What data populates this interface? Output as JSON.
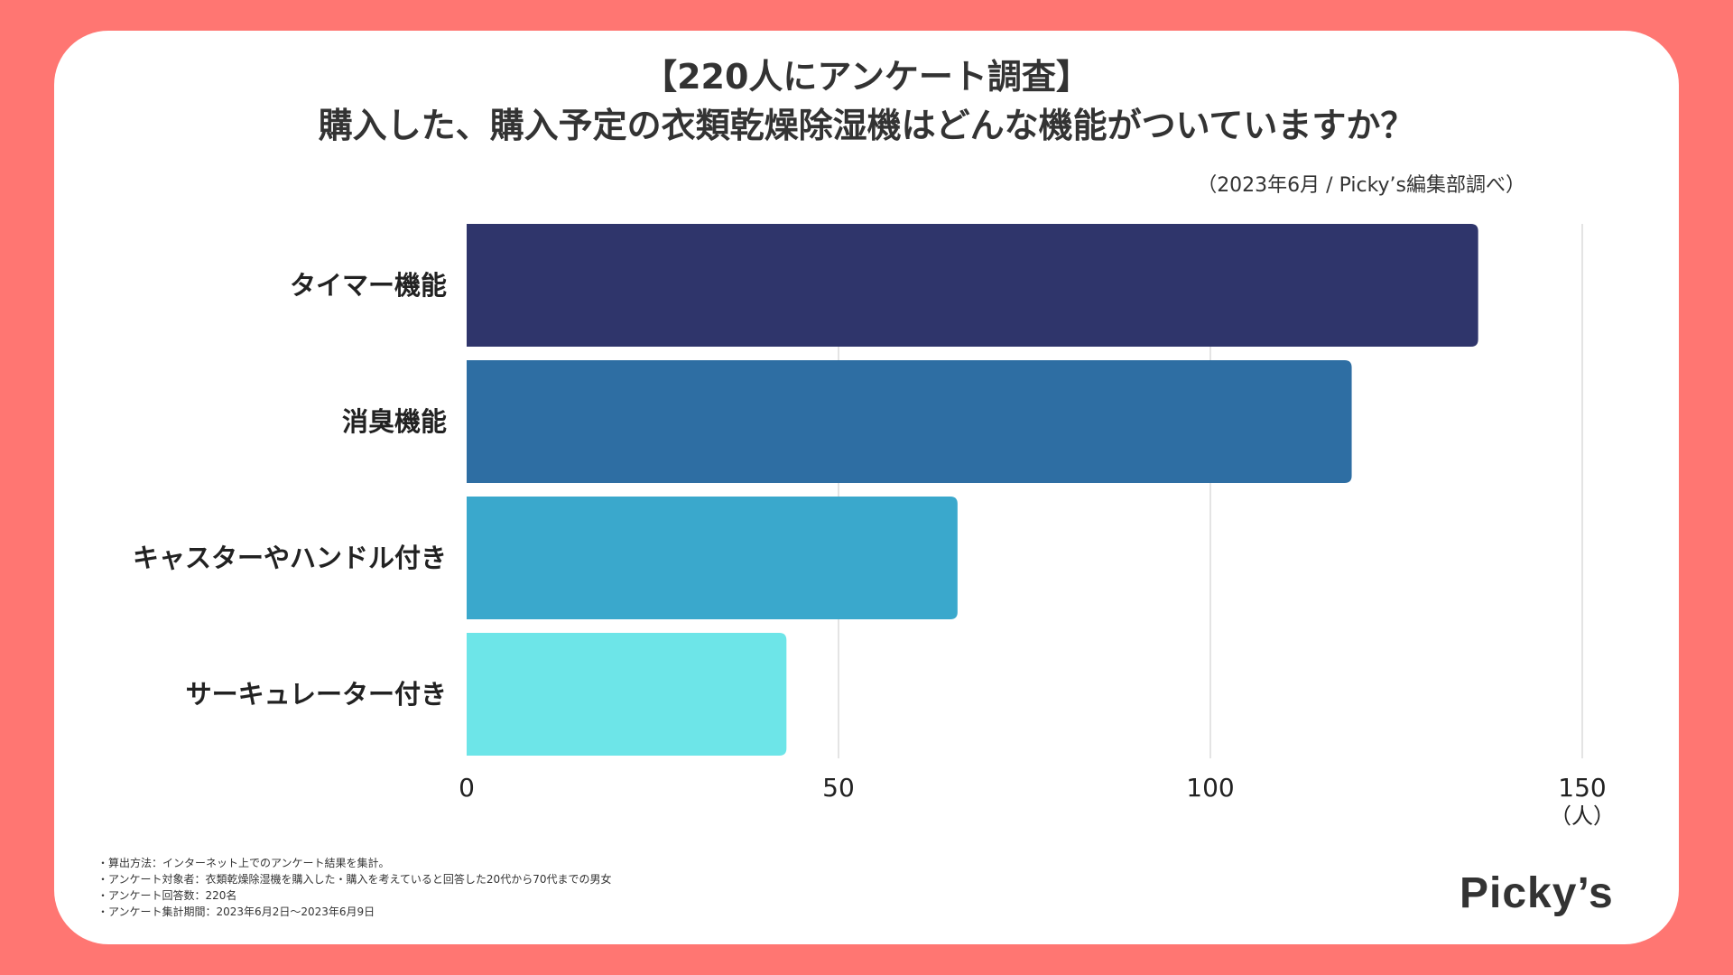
{
  "chart_data": {
    "type": "bar",
    "orientation": "horizontal",
    "title": "【220人にアンケート調査】",
    "subtitle": "購入した、購入予定の衣類乾燥除湿機はどんな機能がついていますか？",
    "source": "（2023年6月 / Picky’s編集部調べ）",
    "categories": [
      "タイマー機能",
      "消臭機能",
      "キャスターやハンドル付き",
      "サーキュレーター付き"
    ],
    "values": [
      136,
      119,
      66,
      43
    ],
    "colors": [
      "#2f356b",
      "#2e6ea3",
      "#3aa8cc",
      "#6de5e8"
    ],
    "xlabel": "",
    "unit_label": "（人）",
    "xlim": [
      0,
      150
    ],
    "xticks": [
      0,
      50,
      100,
      150
    ],
    "xtick_labels": [
      "0",
      "50",
      "100",
      "150"
    ],
    "grid": true
  },
  "notes": [
    "・算出方法：インターネット上でのアンケート結果を集計。",
    "・アンケート対象者：衣類乾燥除湿機を購入した・購入を考えていると回答した20代から70代までの男女",
    "・アンケート回答数：220名",
    "・アンケート集計期間：2023年6月2日〜2023年6月9日"
  ],
  "logo_text": "Picky’s"
}
